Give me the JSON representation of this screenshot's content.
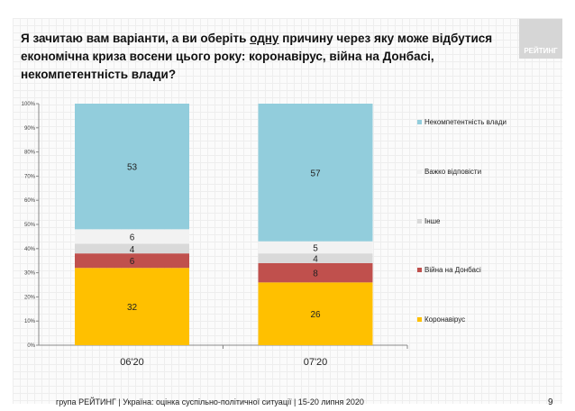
{
  "header": {
    "title_part1": "Я зачитаю вам варіанти, а ви оберіть ",
    "title_underlined": "одну",
    "title_part2": " причину через яку може відбутися економічна криза восени цього року: коронавірус, війна на Донбасі, некомпетентність влади?",
    "logo": "РЕЙТИНГ"
  },
  "chart_data": {
    "type": "bar",
    "stacked": true,
    "categories": [
      "06'20",
      "07'20"
    ],
    "series": [
      {
        "name": "Коронавірус",
        "color": "#FFC000",
        "values": [
          32,
          26
        ]
      },
      {
        "name": "Війна на Донбасі",
        "color": "#C0504D",
        "values": [
          6,
          8
        ]
      },
      {
        "name": "Інше",
        "color": "#D9D9D9",
        "values": [
          4,
          4
        ]
      },
      {
        "name": "Важко відповісти",
        "color": "#F2F2F2",
        "values": [
          6,
          5
        ]
      },
      {
        "name": "Некомпетентність влади",
        "color": "#92CDDC",
        "values": [
          53,
          57
        ]
      }
    ],
    "yticks": [
      "0%",
      "10%",
      "20%",
      "30%",
      "40%",
      "50%",
      "60%",
      "70%",
      "80%",
      "90%",
      "100%"
    ],
    "ylim": [
      0,
      100
    ],
    "legend": "right"
  },
  "footer": {
    "text": "група РЕЙТИНГ |  Україна: оцінка суспільно-політичної  ситуації  | 15-20 липня  2020",
    "page": "9"
  }
}
